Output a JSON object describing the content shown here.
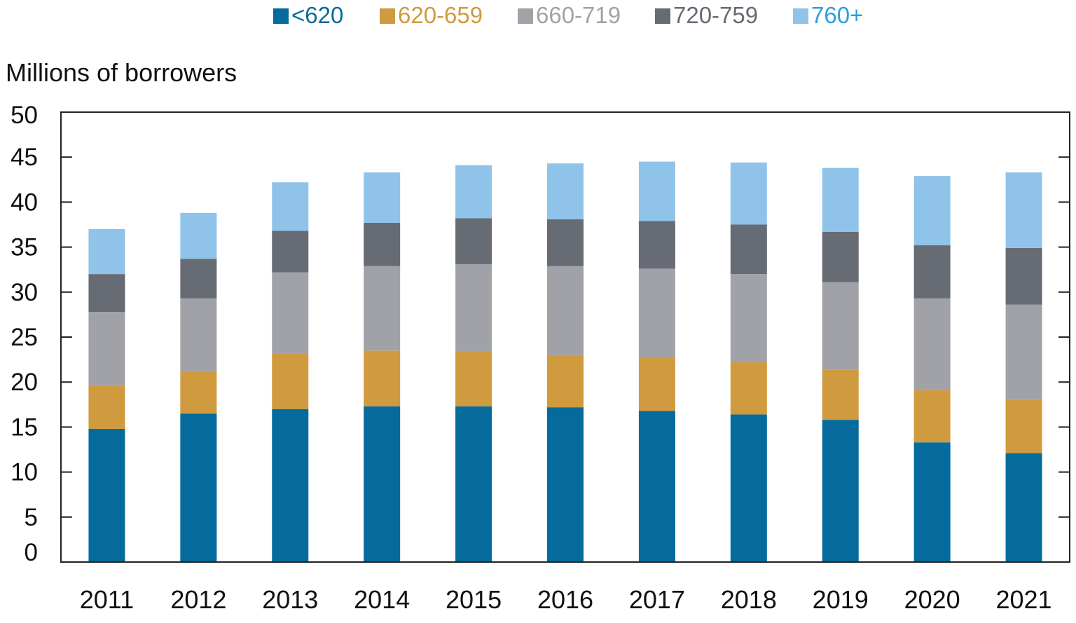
{
  "chart_data": {
    "type": "bar",
    "stacked": true,
    "title": "",
    "xlabel": "",
    "ylabel": "Millions of borrowers",
    "ylim": [
      0,
      50
    ],
    "yticks": [
      0,
      5,
      10,
      15,
      20,
      25,
      30,
      35,
      40,
      45,
      50
    ],
    "grid": false,
    "legend_position": "top-center",
    "categories": [
      "2011",
      "2012",
      "2013",
      "2014",
      "2015",
      "2016",
      "2017",
      "2018",
      "2019",
      "2020",
      "2021"
    ],
    "series": [
      {
        "name": "<620",
        "color": "#046b9c",
        "values": [
          14.8,
          16.5,
          17.0,
          17.3,
          17.3,
          17.2,
          16.8,
          16.4,
          15.8,
          13.3,
          12.1
        ]
      },
      {
        "name": "620-659",
        "color": "#d09a3f",
        "values": [
          4.8,
          4.7,
          6.2,
          6.2,
          6.1,
          5.8,
          5.9,
          5.8,
          5.6,
          5.8,
          5.9
        ]
      },
      {
        "name": "660-719",
        "color": "#a0a2a8",
        "values": [
          8.2,
          8.1,
          9.0,
          9.4,
          9.7,
          9.9,
          9.9,
          9.8,
          9.7,
          10.2,
          10.6
        ]
      },
      {
        "name": "720-759",
        "color": "#666b74",
        "values": [
          4.2,
          4.4,
          4.6,
          4.8,
          5.1,
          5.2,
          5.3,
          5.5,
          5.6,
          5.9,
          6.3
        ]
      },
      {
        "name": "760+",
        "color": "#8fc3ea",
        "values": [
          5.0,
          5.1,
          5.4,
          5.6,
          5.9,
          6.2,
          6.6,
          6.9,
          7.1,
          7.7,
          8.4
        ]
      }
    ],
    "legend_text_colors": [
      "#046b9c",
      "#d09a3f",
      "#a0a2a8",
      "#666b74",
      "#2a9fd8"
    ]
  }
}
